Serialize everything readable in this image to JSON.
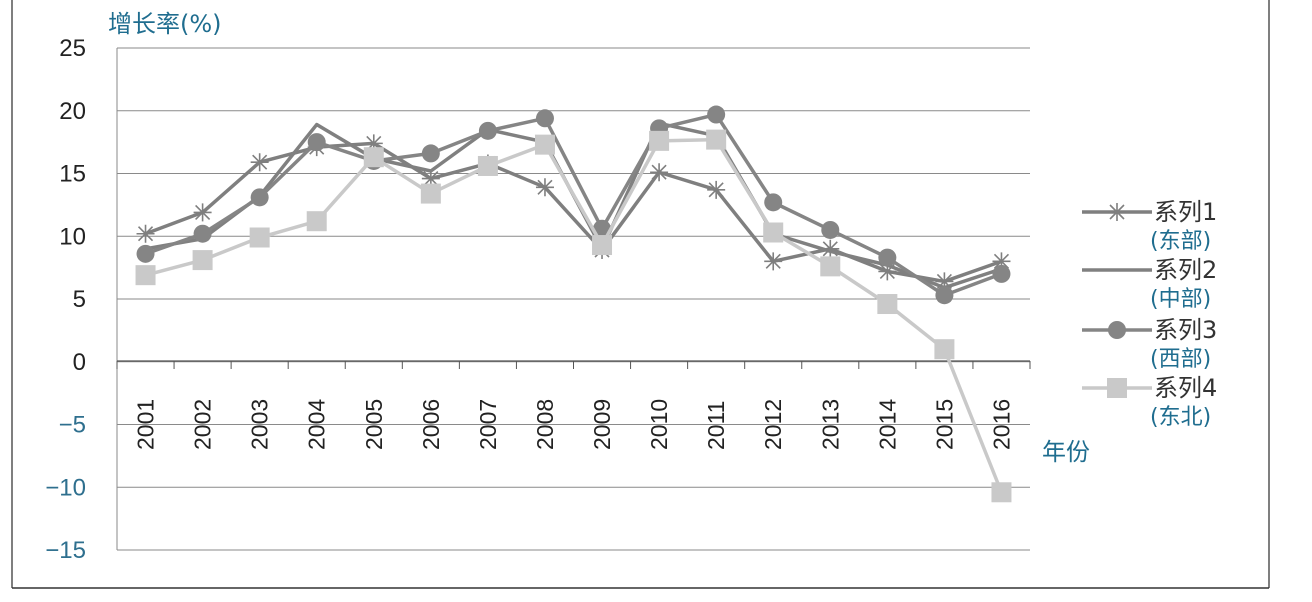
{
  "chart_data": {
    "type": "line",
    "ylabel": "增长率(%)",
    "xlabel": "年份",
    "ylim": [
      -15,
      25
    ],
    "yticks": [
      25,
      20,
      15,
      10,
      5,
      0,
      -5,
      -10,
      -15
    ],
    "categories": [
      "2001",
      "2002",
      "2003",
      "2004",
      "2005",
      "2006",
      "2007",
      "2008",
      "2009",
      "2010",
      "2011",
      "2012",
      "2013",
      "2014",
      "2015",
      "2016"
    ],
    "grid": true,
    "legend_position": "right",
    "series": [
      {
        "name": "系列1",
        "sub": "(东部)",
        "marker": "star",
        "color": "#7f7f7f",
        "values": [
          10.2,
          11.9,
          15.9,
          17.1,
          17.4,
          14.6,
          15.8,
          13.9,
          8.9,
          15.1,
          13.7,
          8.0,
          9.0,
          7.2,
          6.4,
          8.0
        ]
      },
      {
        "name": "系列2",
        "sub": "(中部)",
        "marker": "none",
        "color": "#808080",
        "values": [
          9.0,
          9.8,
          13.2,
          18.9,
          16.2,
          15.2,
          18.5,
          17.5,
          9.0,
          19.0,
          18.0,
          10.2,
          8.8,
          7.7,
          5.9,
          7.4
        ]
      },
      {
        "name": "系列3",
        "sub": "(西部)",
        "marker": "circle",
        "color": "#858585",
        "values": [
          8.6,
          10.2,
          13.1,
          17.5,
          16.0,
          16.6,
          18.4,
          19.4,
          10.6,
          18.6,
          19.7,
          12.7,
          10.5,
          8.3,
          5.3,
          7.0
        ]
      },
      {
        "name": "系列4",
        "sub": "(东北)",
        "marker": "square",
        "color": "#c9c9c9",
        "values": [
          6.9,
          8.1,
          9.9,
          11.2,
          16.3,
          13.4,
          15.6,
          17.3,
          9.3,
          17.6,
          17.7,
          10.3,
          7.6,
          4.6,
          1.0,
          -10.4
        ]
      }
    ]
  }
}
